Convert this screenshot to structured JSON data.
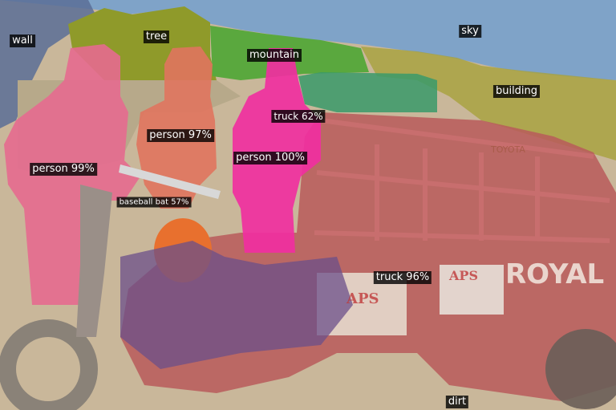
{
  "labels": {
    "wall": "wall",
    "tree": "tree",
    "mountain": "mountain",
    "sky": "sky",
    "building": "building",
    "truck_small": "truck 62%",
    "person_a": "person 97%",
    "person_b": "person 99%",
    "person_c": "person 100%",
    "baseball_bat": "baseball bat 57%",
    "truck_main": "truck 96%",
    "dirt": "dirt",
    "sign_brand": "ROYAL",
    "box_brand": "APS",
    "panel_brand": "APS",
    "truck_text": "TOYOTA"
  },
  "colors": {
    "sky": "#7fa3c8",
    "tree": "#8f9a2a",
    "mountain": "#5aa83e",
    "building": "#a8a13c",
    "wall": "#5b6e96",
    "dirt": "#c9b79a",
    "person_99": "#e56a8f",
    "person_97": "#e0745e",
    "person_100": "#f02fa0",
    "truck_96": "#b85a5a",
    "truck_62": "#3a9a6a",
    "bat": "#d8d8d8",
    "tank": "#e8702e"
  }
}
